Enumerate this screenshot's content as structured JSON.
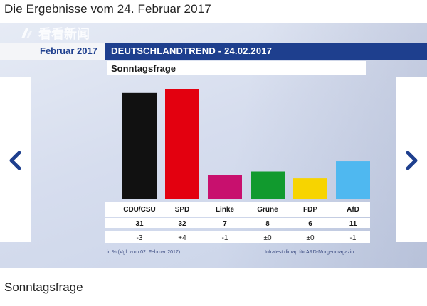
{
  "page": {
    "title": "Die Ergebnisse vom 24. Februar 2017",
    "caption": "Sonntagsfrage"
  },
  "watermark": {
    "text": "看看新闻"
  },
  "slide": {
    "date_label": "Februar 2017",
    "header": "DEUTSCHLANDTREND - 24.02.2017",
    "subtitle": "Sonntagsfrage",
    "footnote_left": "in % (Vgl. zum 02. Februar 2017)",
    "footnote_right": "Infratest dimap für ARD-Morgenmagazin"
  },
  "nav": {
    "prev_icon": "chevron-left-icon",
    "next_icon": "chevron-right-icon"
  },
  "colors": {
    "header": "#1e3f8e",
    "arrow": "#1e3f8e"
  },
  "chart_data": {
    "type": "bar",
    "title": "Sonntagsfrage",
    "categories": [
      "CDU/CSU",
      "SPD",
      "Linke",
      "Grüne",
      "FDP",
      "AfD"
    ],
    "values": [
      31,
      32,
      7,
      8,
      6,
      11
    ],
    "changes": [
      "-3",
      "+4",
      "-1",
      "±0",
      "±0",
      "-1"
    ],
    "colors": [
      "#111111",
      "#e3000f",
      "#c8106e",
      "#119a2e",
      "#f7d400",
      "#4fb8f0"
    ],
    "unit": "%",
    "ylim": [
      0,
      35
    ],
    "grid": false,
    "legend": "none"
  }
}
